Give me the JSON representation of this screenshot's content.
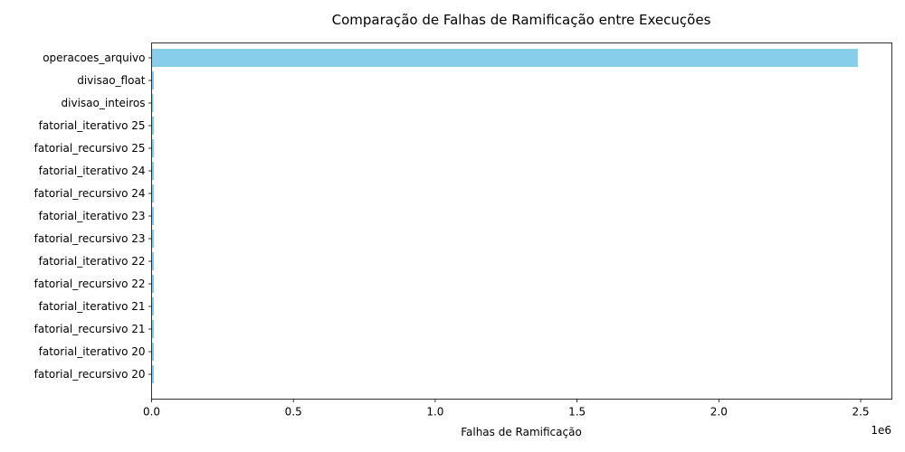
{
  "chart_data": {
    "type": "bar",
    "orientation": "horizontal",
    "title": "Comparação de Falhas de Ramificação entre Execuções",
    "xlabel": "Falhas de Ramificação",
    "ylabel": "",
    "x_offset_label": "1e6",
    "xlim": [
      0,
      2.61
    ],
    "x_unit_multiplier": 1000000,
    "x_ticks": [
      0,
      0.5,
      1.0,
      1.5,
      2.0,
      2.5
    ],
    "x_tick_labels": [
      "0.0",
      "0.5",
      "1.0",
      "1.5",
      "2.0",
      "2.5"
    ],
    "grid": false,
    "legend": "none",
    "bar_color": "#87ceeb",
    "categories": [
      "operacoes_arquivo",
      "divisao_float",
      "divisao_inteiros",
      "fatorial_iterativo 25",
      "fatorial_recursivo 25",
      "fatorial_iterativo 24",
      "fatorial_recursivo 24",
      "fatorial_iterativo 23",
      "fatorial_recursivo 23",
      "fatorial_iterativo 22",
      "fatorial_recursivo 22",
      "fatorial_iterativo 21",
      "fatorial_recursivo 21",
      "fatorial_iterativo 20",
      "fatorial_recursivo 20"
    ],
    "values": [
      2490000,
      8000,
      6500,
      8500,
      8700,
      8400,
      8600,
      8300,
      8500,
      8200,
      8400,
      8100,
      8300,
      8000,
      8200
    ]
  }
}
